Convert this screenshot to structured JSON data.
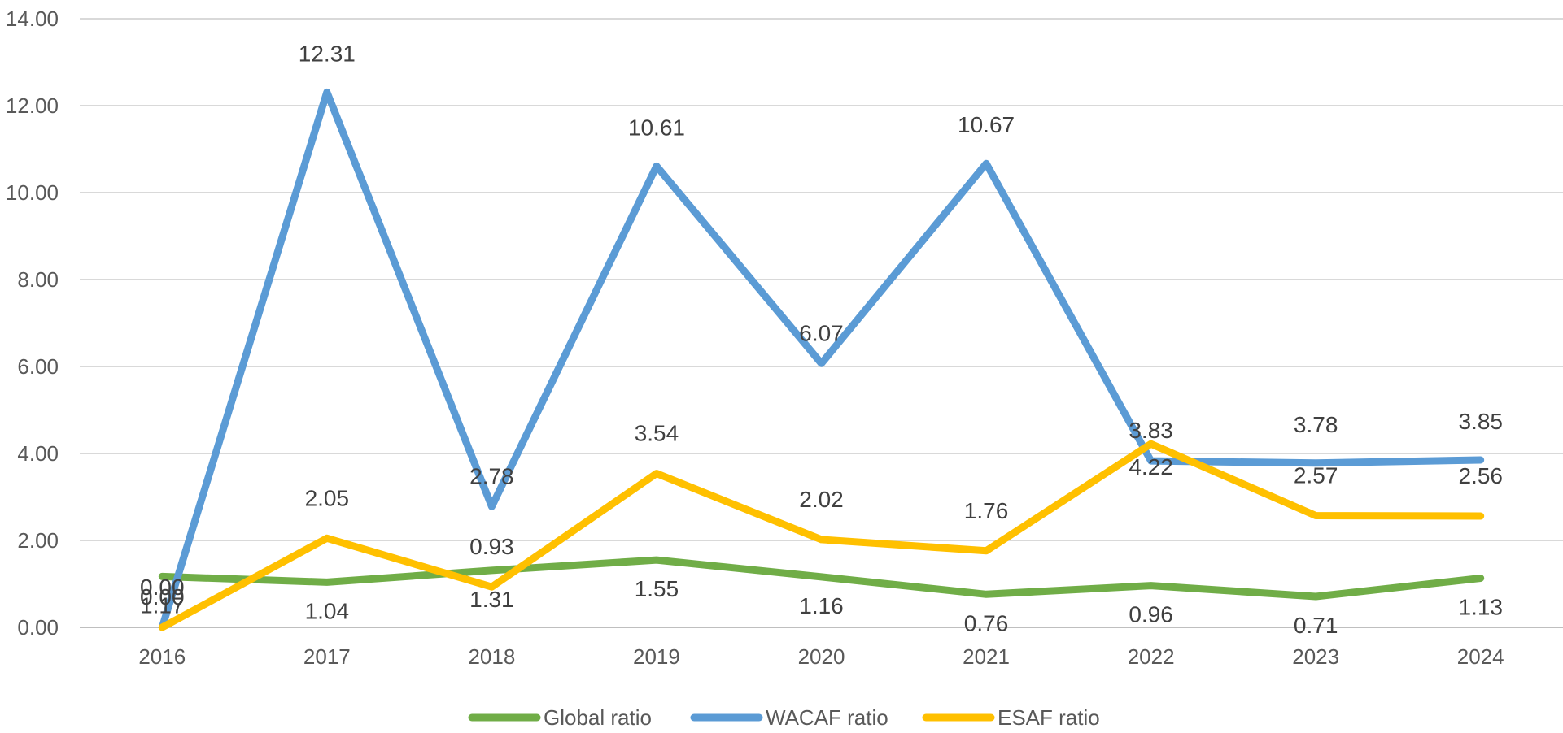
{
  "chart_data": {
    "type": "line",
    "title": "",
    "xlabel": "",
    "ylabel": "",
    "categories": [
      "2016",
      "2017",
      "2018",
      "2019",
      "2020",
      "2021",
      "2022",
      "2023",
      "2024"
    ],
    "ylim": [
      0,
      14
    ],
    "yticks": [
      "0.00",
      "2.00",
      "4.00",
      "6.00",
      "8.00",
      "10.00",
      "12.00",
      "14.00"
    ],
    "grid": true,
    "legend_position": "bottom",
    "series": [
      {
        "name": "Global ratio",
        "color": "#70AD47",
        "values": [
          1.17,
          1.04,
          1.31,
          1.55,
          1.16,
          0.76,
          0.96,
          0.71,
          1.13
        ],
        "labels": [
          "1.17",
          "1.04",
          "1.31",
          "1.55",
          "1.16",
          "0.76",
          "0.96",
          "0.71",
          "1.13"
        ]
      },
      {
        "name": "WACAF ratio",
        "color": "#5B9BD5",
        "values": [
          0.0,
          12.31,
          2.78,
          10.61,
          6.07,
          10.67,
          3.83,
          3.78,
          3.85
        ],
        "labels": [
          "0.00",
          "12.31",
          "2.78",
          "10.61",
          "6.07",
          "10.67",
          "3.83",
          "3.78",
          "3.85"
        ]
      },
      {
        "name": "ESAF ratio",
        "color": "#FFC000",
        "values": [
          0.0,
          2.05,
          0.93,
          3.54,
          2.02,
          1.76,
          4.22,
          2.57,
          2.56
        ],
        "labels": [
          "0.00",
          "2.05",
          "0.93",
          "3.54",
          "2.02",
          "1.76",
          "4.22",
          "2.57",
          "2.56"
        ]
      }
    ]
  }
}
